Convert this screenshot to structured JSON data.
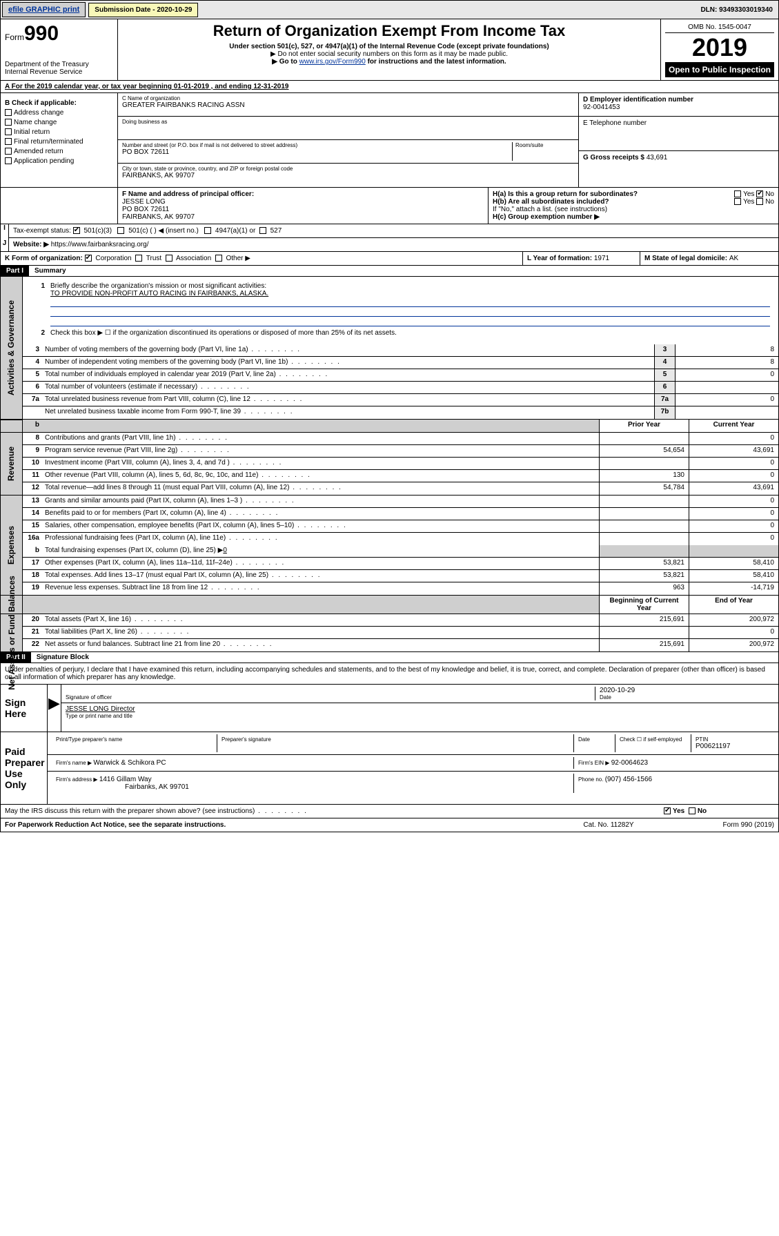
{
  "topbar": {
    "efile_btn": "efile GRAPHIC print",
    "subdate_label": "Submission Date - ",
    "subdate": "2020-10-29",
    "dln_label": "DLN: ",
    "dln": "93493303019340"
  },
  "header": {
    "form_label": "Form",
    "form_num": "990",
    "dept1": "Department of the Treasury",
    "dept2": "Internal Revenue Service",
    "title": "Return of Organization Exempt From Income Tax",
    "sub1": "Under section 501(c), 527, or 4947(a)(1) of the Internal Revenue Code (except private foundations)",
    "sub2": "▶ Do not enter social security numbers on this form as it may be made public.",
    "sub3_pre": "▶ Go to ",
    "sub3_link": "www.irs.gov/Form990",
    "sub3_post": " for instructions and the latest information.",
    "omb": "OMB No. 1545-0047",
    "year": "2019",
    "open": "Open to Public Inspection"
  },
  "year_line": {
    "pre": "A For the 2019 calendar year, or tax year beginning ",
    "start": "01-01-2019",
    "mid": " , and ending ",
    "end": "12-31-2019"
  },
  "box_b": {
    "title": "B Check if applicable:",
    "items": [
      "Address change",
      "Name change",
      "Initial return",
      "Final return/terminated",
      "Amended return",
      "Application pending"
    ]
  },
  "name_block": {
    "c_label": "C Name of organization",
    "c_name": "GREATER FAIRBANKS RACING ASSN",
    "dba_label": "Doing business as",
    "dba": "",
    "addr_label": "Number and street (or P.O. box if mail is not delivered to street address)",
    "room_label": "Room/suite",
    "addr": "PO BOX 72611",
    "city_label": "City or town, state or province, country, and ZIP or foreign postal code",
    "city": "FAIRBANKS, AK  99707"
  },
  "right_block": {
    "d_label": "D Employer identification number",
    "d_val": "92-0041453",
    "e_label": "E Telephone number",
    "e_val": "",
    "g_label": "G Gross receipts $ ",
    "g_val": "43,691"
  },
  "officer": {
    "f_label": "F Name and address of principal officer:",
    "name": "JESSE LONG",
    "addr1": "PO BOX 72611",
    "addr2": "FAIRBANKS, AK  99707"
  },
  "h_block": {
    "ha_label": "H(a)  Is this a group return for subordinates?",
    "ha_yes": "Yes",
    "ha_no": "No",
    "hb_label": "H(b)  Are all subordinates included?",
    "hb_yes": "Yes",
    "hb_no": "No",
    "hb_note": "If \"No,\" attach a list. (see instructions)",
    "hc_label": "H(c)  Group exemption number ▶"
  },
  "status_row": {
    "i_label": "Tax-exempt status:",
    "opt1": "501(c)(3)",
    "opt2": "501(c) (  ) ◀ (insert no.)",
    "opt3": "4947(a)(1) or",
    "opt4": "527"
  },
  "j_row": {
    "label": "Website: ▶",
    "val": "https://www.fairbanksracing.org/"
  },
  "k_row": {
    "label": "K Form of organization:",
    "opts": [
      "Corporation",
      "Trust",
      "Association",
      "Other ▶"
    ],
    "l_label": "L Year of formation: ",
    "l_val": "1971",
    "m_label": "M State of legal domicile: ",
    "m_val": "AK"
  },
  "part1": {
    "bar": "Part I",
    "title": "Summary"
  },
  "summary": {
    "q1_label": "Briefly describe the organization's mission or most significant activities:",
    "q1_val": "TO PROVIDE NON-PROFIT AUTO RACING IN FAIRBANKS, ALASKA.",
    "q2": "Check this box ▶ ☐ if the organization discontinued its operations or disposed of more than 25% of its net assets.",
    "labels": {
      "gov": "Activities & Governance",
      "rev": "Revenue",
      "exp": "Expenses",
      "net": "Net Assets or Fund Balances"
    },
    "col_prior": "Prior Year",
    "col_curr": "Current Year",
    "col_beg": "Beginning of Current Year",
    "col_end": "End of Year",
    "rows_top": [
      {
        "n": "3",
        "d": "Number of voting members of the governing body (Part VI, line 1a)",
        "k": "3",
        "v": "8"
      },
      {
        "n": "4",
        "d": "Number of independent voting members of the governing body (Part VI, line 1b)",
        "k": "4",
        "v": "8"
      },
      {
        "n": "5",
        "d": "Total number of individuals employed in calendar year 2019 (Part V, line 2a)",
        "k": "5",
        "v": "0"
      },
      {
        "n": "6",
        "d": "Total number of volunteers (estimate if necessary)",
        "k": "6",
        "v": ""
      },
      {
        "n": "7a",
        "d": "Total unrelated business revenue from Part VIII, column (C), line 12",
        "k": "7a",
        "v": "0"
      },
      {
        "n": "",
        "d": "Net unrelated business taxable income from Form 990-T, line 39",
        "k": "7b",
        "v": ""
      }
    ],
    "rows_rev": [
      {
        "n": "8",
        "d": "Contributions and grants (Part VIII, line 1h)",
        "p": "",
        "c": "0"
      },
      {
        "n": "9",
        "d": "Program service revenue (Part VIII, line 2g)",
        "p": "54,654",
        "c": "43,691"
      },
      {
        "n": "10",
        "d": "Investment income (Part VIII, column (A), lines 3, 4, and 7d )",
        "p": "",
        "c": "0"
      },
      {
        "n": "11",
        "d": "Other revenue (Part VIII, column (A), lines 5, 6d, 8c, 9c, 10c, and 11e)",
        "p": "130",
        "c": "0"
      },
      {
        "n": "12",
        "d": "Total revenue—add lines 8 through 11 (must equal Part VIII, column (A), line 12)",
        "p": "54,784",
        "c": "43,691"
      }
    ],
    "rows_exp": [
      {
        "n": "13",
        "d": "Grants and similar amounts paid (Part IX, column (A), lines 1–3 )",
        "p": "",
        "c": "0"
      },
      {
        "n": "14",
        "d": "Benefits paid to or for members (Part IX, column (A), line 4)",
        "p": "",
        "c": "0"
      },
      {
        "n": "15",
        "d": "Salaries, other compensation, employee benefits (Part IX, column (A), lines 5–10)",
        "p": "",
        "c": "0"
      },
      {
        "n": "16a",
        "d": "Professional fundraising fees (Part IX, column (A), line 11e)",
        "p": "",
        "c": "0"
      }
    ],
    "row_16b": {
      "n": "b",
      "d": "Total fundraising expenses (Part IX, column (D), line 25) ▶",
      "v": "0"
    },
    "rows_exp2": [
      {
        "n": "17",
        "d": "Other expenses (Part IX, column (A), lines 11a–11d, 11f–24e)",
        "p": "53,821",
        "c": "58,410"
      },
      {
        "n": "18",
        "d": "Total expenses. Add lines 13–17 (must equal Part IX, column (A), line 25)",
        "p": "53,821",
        "c": "58,410"
      },
      {
        "n": "19",
        "d": "Revenue less expenses. Subtract line 18 from line 12",
        "p": "963",
        "c": "-14,719"
      }
    ],
    "rows_net": [
      {
        "n": "20",
        "d": "Total assets (Part X, line 16)",
        "p": "215,691",
        "c": "200,972"
      },
      {
        "n": "21",
        "d": "Total liabilities (Part X, line 26)",
        "p": "",
        "c": "0"
      },
      {
        "n": "22",
        "d": "Net assets or fund balances. Subtract line 21 from line 20",
        "p": "215,691",
        "c": "200,972"
      }
    ]
  },
  "part2": {
    "bar": "Part II",
    "title": "Signature Block"
  },
  "perjury": "Under penalties of perjury, I declare that I have examined this return, including accompanying schedules and statements, and to the best of my knowledge and belief, it is true, correct, and complete. Declaration of preparer (other than officer) is based on all information of which preparer has any knowledge.",
  "sign": {
    "here": "Sign Here",
    "sig_label": "Signature of officer",
    "date_label": "Date",
    "date": "2020-10-29",
    "name": "JESSE LONG Director",
    "name_label": "Type or print name and title"
  },
  "paid": {
    "title": "Paid Preparer Use Only",
    "h1": "Print/Type preparer's name",
    "h2": "Preparer's signature",
    "h3": "Date",
    "h4_pre": "Check ☐ if self-employed",
    "h5": "PTIN",
    "ptin": "P00621197",
    "firm_name_label": "Firm's name    ▶ ",
    "firm_name": "Warwick & Schikora PC",
    "firm_ein_label": "Firm's EIN ▶ ",
    "firm_ein": "92-0064623",
    "firm_addr_label": "Firm's address ▶ ",
    "firm_addr1": "1416 Gillam Way",
    "firm_addr2": "Fairbanks, AK  99701",
    "phone_label": "Phone no. ",
    "phone": "(907) 456-1566"
  },
  "discuss": {
    "text": "May the IRS discuss this return with the preparer shown above? (see instructions)",
    "yes": "Yes",
    "no": "No"
  },
  "footer": {
    "left": "For Paperwork Reduction Act Notice, see the separate instructions.",
    "mid": "Cat. No. 11282Y",
    "right": "Form 990 (2019)"
  }
}
